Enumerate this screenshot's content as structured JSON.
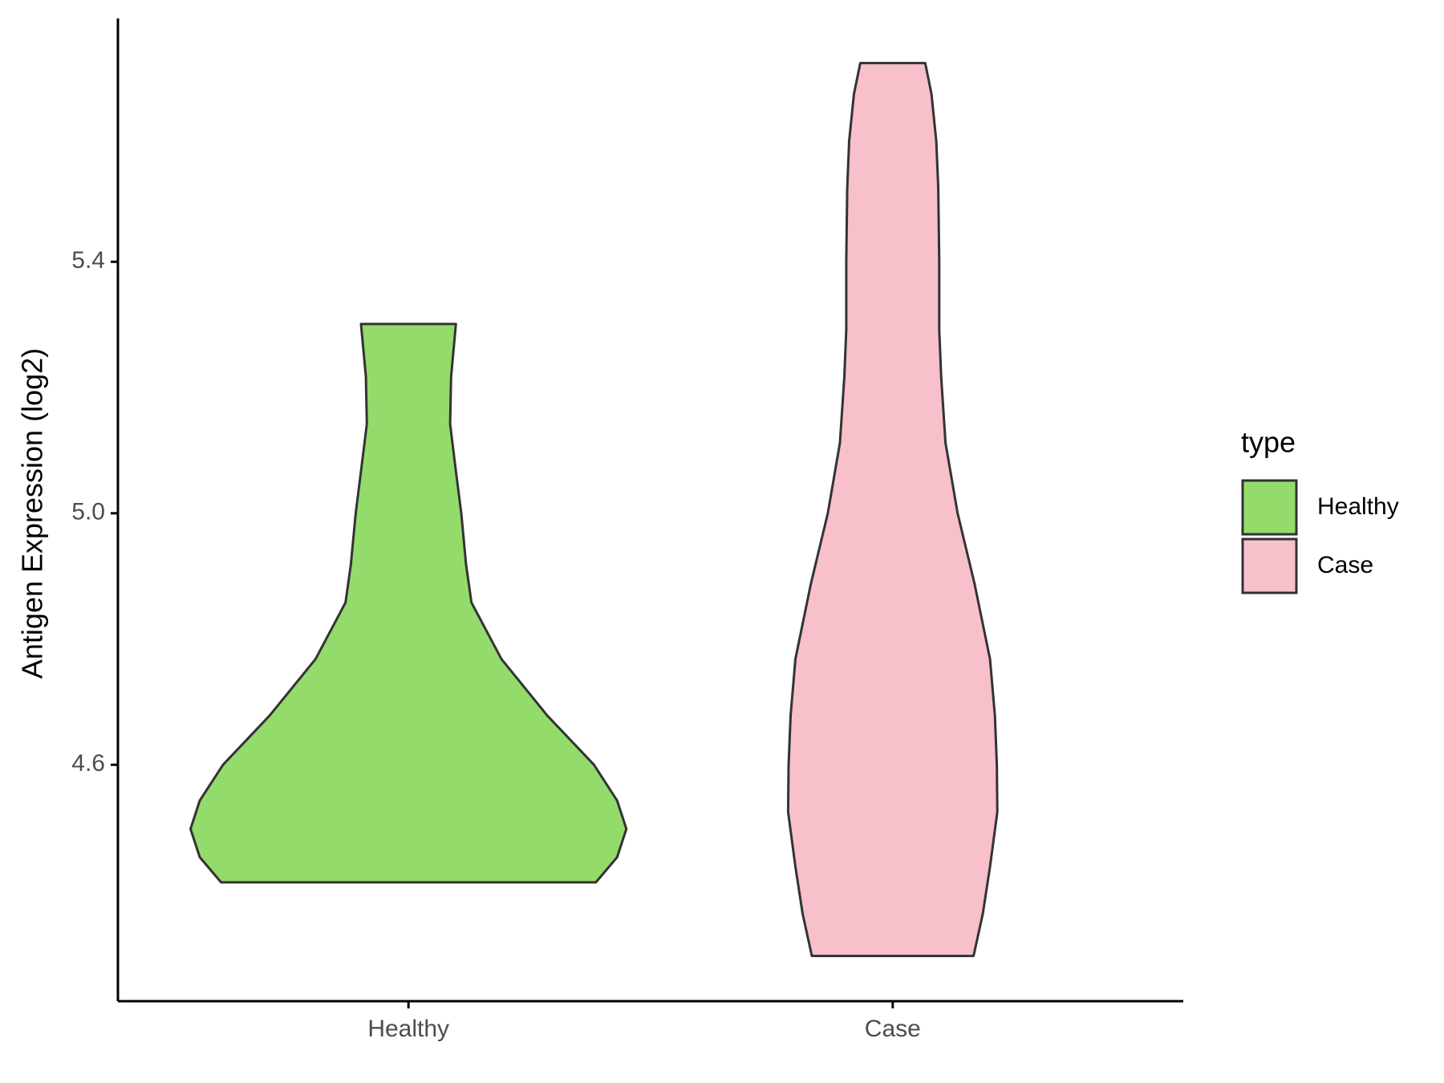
{
  "chart_data": {
    "type": "violin",
    "y_label": "Antigen Expression (log2)",
    "categories": [
      "Healthy",
      "Case"
    ],
    "legend_title": "type",
    "legend_position": "right",
    "ylim": [
      4.224,
      5.787
    ],
    "yticks": [
      {
        "value": 4.6,
        "label": "4.6"
      },
      {
        "value": 5.0,
        "label": "5.0"
      },
      {
        "value": 5.4,
        "label": "5.4"
      }
    ],
    "grid": false,
    "series": [
      {
        "name": "Healthy",
        "color": "#93dc6b",
        "y": [
          5.301,
          5.217,
          5.142,
          5.067,
          5.0,
          4.918,
          4.858,
          4.768,
          4.678,
          4.6,
          4.543,
          4.498,
          4.453,
          4.413
        ],
        "width": [
          0.098,
          0.088,
          0.086,
          0.098,
          0.109,
          0.119,
          0.13,
          0.192,
          0.287,
          0.383,
          0.431,
          0.45,
          0.431,
          0.387
        ]
      },
      {
        "name": "Case",
        "color": "#f7c0cb",
        "y": [
          5.716,
          5.667,
          5.592,
          5.517,
          5.4,
          5.292,
          5.217,
          5.112,
          5.0,
          4.888,
          4.768,
          4.678,
          4.6,
          4.525,
          4.438,
          4.363,
          4.296
        ],
        "width": [
          0.067,
          0.08,
          0.09,
          0.094,
          0.096,
          0.096,
          0.1,
          0.109,
          0.134,
          0.169,
          0.201,
          0.211,
          0.215,
          0.216,
          0.201,
          0.186,
          0.167
        ]
      }
    ]
  }
}
